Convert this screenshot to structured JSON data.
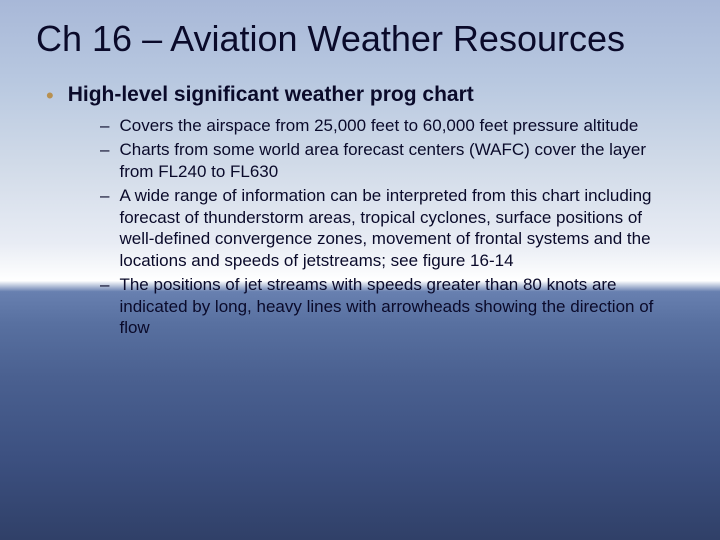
{
  "slide": {
    "title": "Ch 16 – Aviation Weather Resources",
    "bullet": {
      "label": "High-level significant weather prog chart",
      "dot_color": "#b89050"
    },
    "sub_items": [
      "Covers the airspace from 25,000 feet to 60,000 feet pressure altitude",
      "Charts from some world area forecast centers (WAFC) cover the layer from FL240 to FL630",
      "A wide range of information can be interpreted from this chart including forecast of thunderstorm areas, tropical cyclones, surface positions of well-defined convergence zones, movement of frontal systems and the locations and speeds of jetstreams; see figure 16-14",
      "The positions of jet streams with speeds greater than 80 knots are indicated by long, heavy lines with arrowheads showing the direction of flow"
    ],
    "background": {
      "sky_top": "#a8b8d8",
      "sky_mid": "#e8ecf4",
      "horizon": "#ffffff",
      "water_top": "#6880b0",
      "water_bottom": "#304068"
    },
    "typography": {
      "title_fontsize": 36,
      "bullet_fontsize": 21,
      "sub_fontsize": 17,
      "font_family": "Verdana",
      "text_color": "#0a0a2a"
    }
  }
}
